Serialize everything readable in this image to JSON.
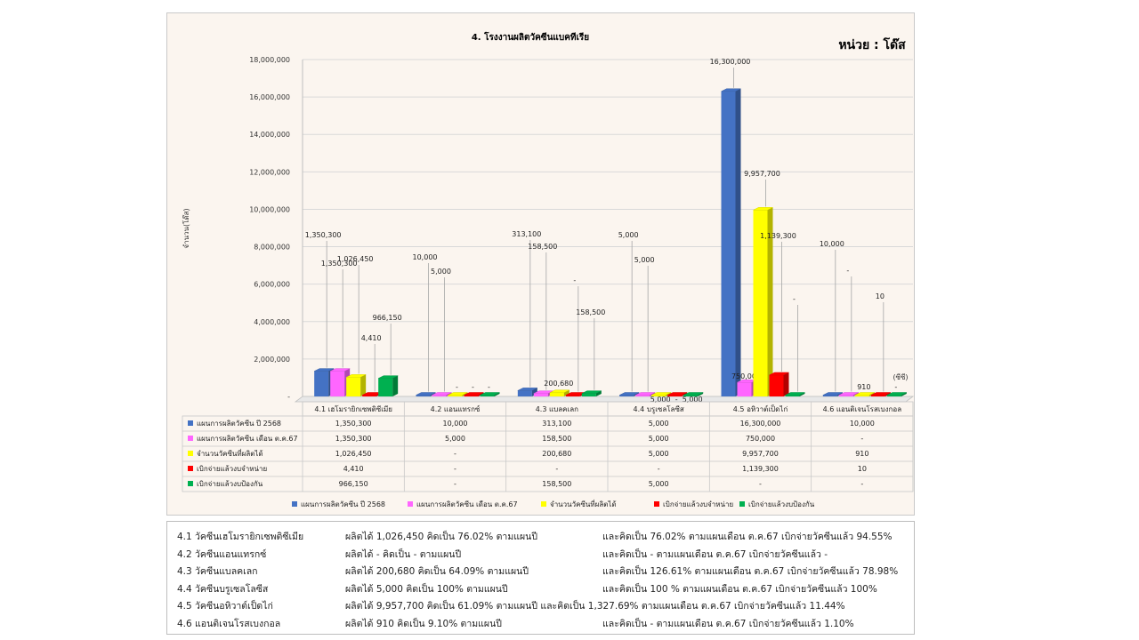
{
  "chart_data": {
    "type": "bar",
    "title": "4. โรงงานผลิตวัคซีนแบคทีเรีย",
    "unit_label": "หน่วย : โด๊ส",
    "ylabel": "จำนวน(โด๊ส)",
    "ylim": [
      0,
      18000000
    ],
    "y_ticks": [
      "-",
      "2,000,000",
      "4,000,000",
      "6,000,000",
      "8,000,000",
      "10,000,000",
      "12,000,000",
      "14,000,000",
      "16,000,000",
      "18,000,000"
    ],
    "grid": true,
    "legend_position": "bottom",
    "side_note": "(ซีซี)",
    "categories": [
      "4.1 เฮโมรายิกเซพติซีเมีย",
      "4.2 แอนแทรกซ์",
      "4.3 แบลคเลก",
      "4.4 บรูเซลโลซีส",
      "4.5 อหิวาต์เป็ดไก่",
      "4.6 แอนติเจนโรสเบงกอล"
    ],
    "series": [
      {
        "name": "แผนการผลิตวัคซีน ปี 2568",
        "color": "#4472c4",
        "values": [
          1350300,
          10000,
          313100,
          5000,
          16300000,
          10000
        ],
        "labels": [
          "1,350,300",
          "10,000",
          "313,100",
          "5,000",
          "16,300,000",
          "10,000"
        ]
      },
      {
        "name": "แผนการผลิตวัคซีน เดือน ต.ค.67",
        "color": "#ff66ff",
        "values": [
          1350300,
          5000,
          158500,
          5000,
          750000,
          0
        ],
        "labels": [
          "1,350,300",
          "5,000",
          "158,500",
          "5,000",
          "750,000",
          "-"
        ]
      },
      {
        "name": "จำนวนวัคซีนที่ผลิตได้",
        "color": "#ffff00",
        "values": [
          1026450,
          0,
          200680,
          5000,
          9957700,
          910
        ],
        "labels": [
          "1,026,450",
          "-",
          "200,680",
          "5,000",
          "9,957,700",
          "910"
        ]
      },
      {
        "name": "เบิกจ่ายแล้วงบจำหน่าย",
        "color": "#ff0000",
        "values": [
          4410,
          0,
          0,
          0,
          1139300,
          10
        ],
        "labels": [
          "4,410",
          "-",
          "-",
          "-",
          "1,139,300",
          "10"
        ]
      },
      {
        "name": "เบิกจ่ายแล้วงบป้องกัน",
        "color": "#00b050",
        "values": [
          966150,
          0,
          158500,
          5000,
          0,
          0
        ],
        "labels": [
          "966,150",
          "-",
          "158,500",
          "5,000",
          "-",
          "-"
        ]
      }
    ]
  },
  "notes": [
    {
      "name": "4.1 วัคซีนเฮโมรายิกเซพติซีเมีย",
      "plan": "ผลิตได้  1,026,450 คิดเป็น  76.02% ตามแผนปี",
      "month": "และคิดเป็น  76.02% ตามแผนเดือน  ต.ค.67  เบิกจ่ายวัคซีนแล้ว 94.55%"
    },
    {
      "name": "4.2 วัคซีนแอนแทรกซ์",
      "plan": "ผลิตได้   -              คิดเป็น   -   ตามแผนปี",
      "month": "และคิดเป็น   -  ตามแผนเดือน  ต.ค.67  เบิกจ่ายวัคซีนแล้ว  -"
    },
    {
      "name": "4.3 วัคซีนแบลคเลก",
      "plan": "ผลิตได้  200,680 คิดเป็น  64.09% ตามแผนปี",
      "month": "และคิดเป็น  126.61% ตามแผนเดือน  ต.ค.67  เบิกจ่ายวัคซีนแล้ว  78.98%"
    },
    {
      "name": "4.4 วัคซีนบรูเซลโลซีส",
      "plan": "ผลิตได้  5,000       คิดเป็น  100% ตามแผนปี",
      "month": "และคิดเป็น  100 % ตามแผนเดือน  ต.ค.67  เบิกจ่ายวัคซีนแล้ว  100%"
    },
    {
      "name": "4.5 วัคซีนอหิวาต์เป็ดไก่",
      "plan": "ผลิตได้  9,957,700 คิดเป็น  61.09% ตามแผนปี  และคิดเป็น  1,327.69% ตามแผนเดือน  ต.ค.67  เบิกจ่ายวัคซีนแล้ว  11.44%",
      "month": ""
    },
    {
      "name": "4.6 แอนติเจนโรสเบงกอล",
      "plan": "ผลิตได้  910     คิดเป็น  9.10%  ตามแผนปี",
      "month": "และคิดเป็น   -  ตามแผนเดือน  ต.ค.67  เบิกจ่ายวัคซีนแล้ว  1.10%"
    }
  ]
}
